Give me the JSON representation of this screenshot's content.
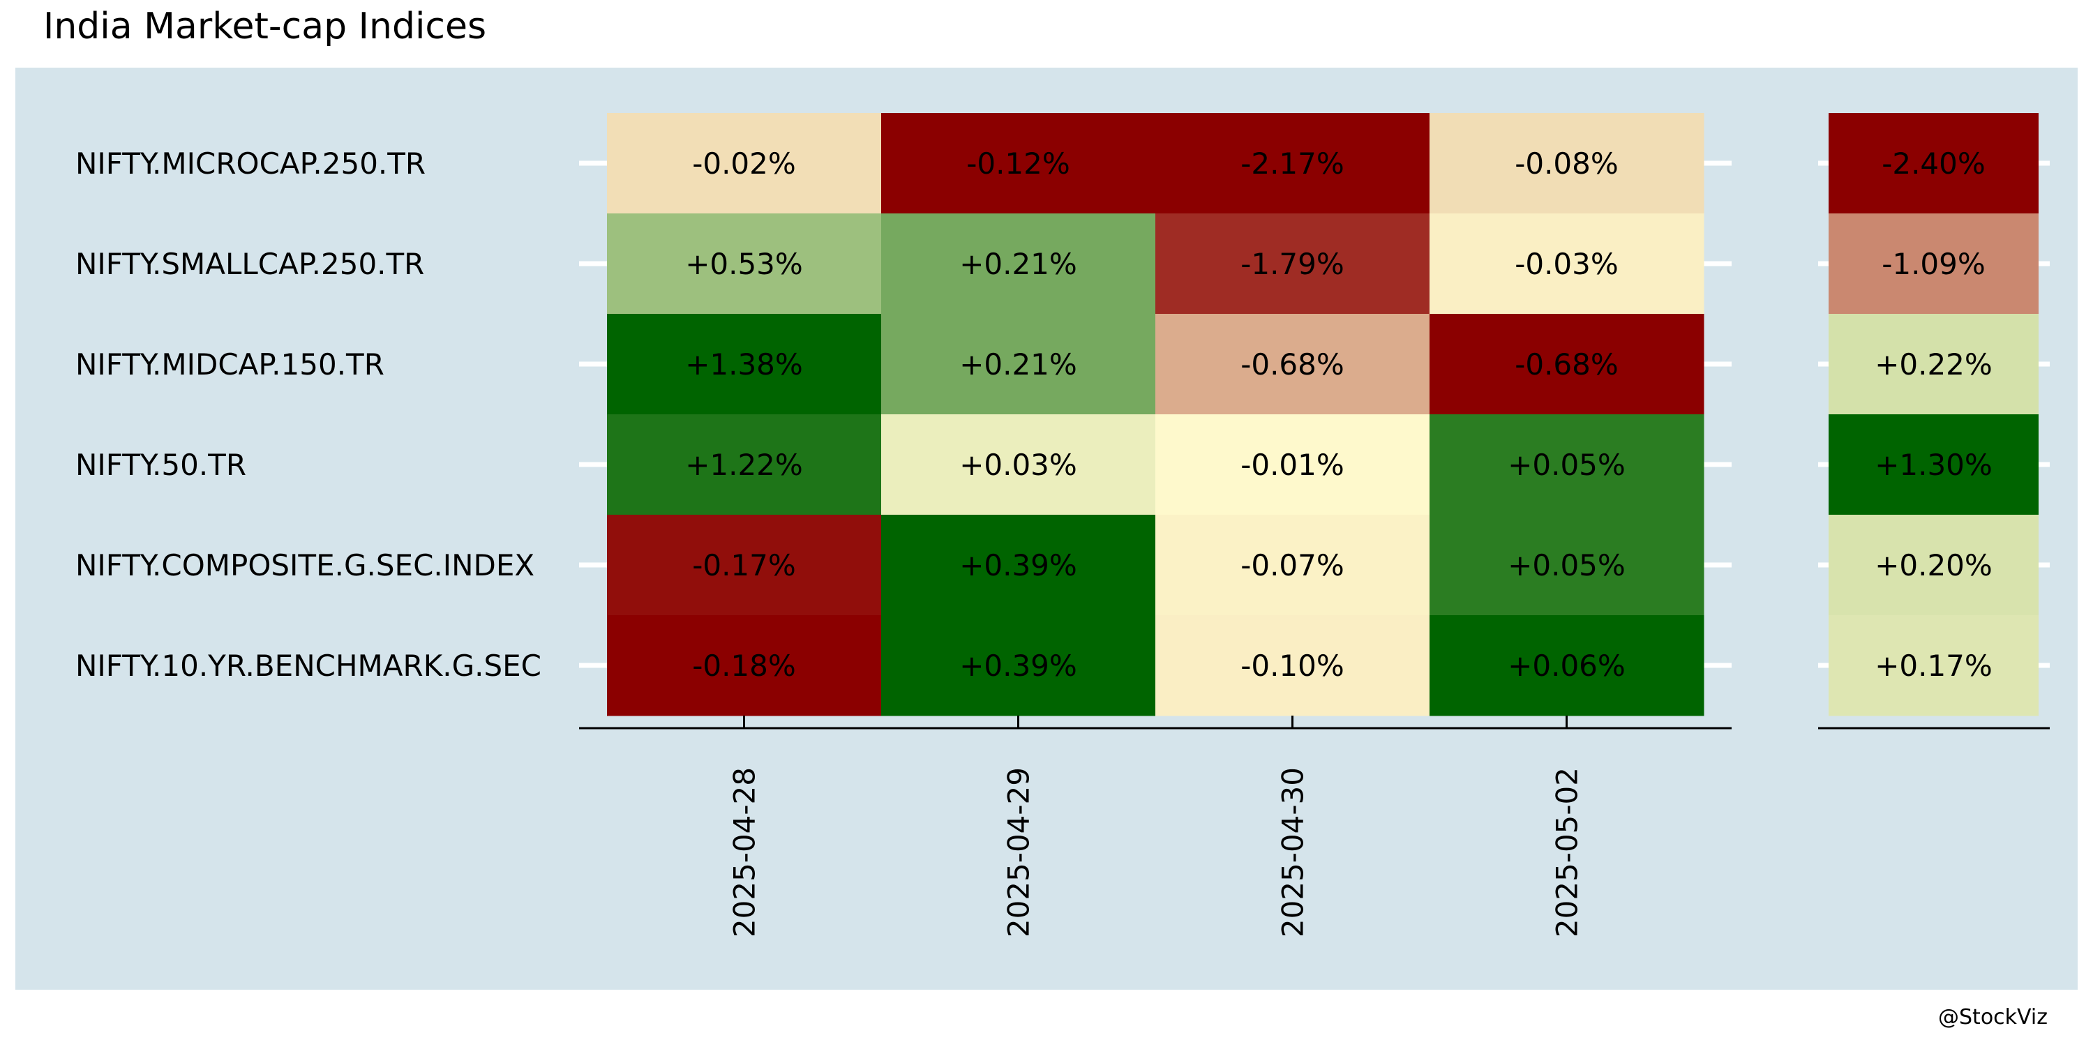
{
  "chart_data": {
    "type": "heatmap",
    "title": "India Market-cap Indices",
    "credit": "@StockViz",
    "rows": [
      "NIFTY.MICROCAP.250.TR",
      "NIFTY.SMALLCAP.250.TR",
      "NIFTY.MIDCAP.150.TR",
      "NIFTY.50.TR",
      "NIFTY.COMPOSITE.G.SEC.INDEX",
      "NIFTY.10.YR.BENCHMARK.G.SEC"
    ],
    "columns": [
      "2025-04-28",
      "2025-04-29",
      "2025-04-30",
      "2025-05-02"
    ],
    "values": [
      [
        -0.02,
        -0.12,
        -2.17,
        -0.08
      ],
      [
        0.53,
        0.21,
        -1.79,
        -0.03
      ],
      [
        1.38,
        0.21,
        -0.68,
        -0.68
      ],
      [
        1.22,
        0.03,
        -0.01,
        0.05
      ],
      [
        -0.17,
        0.39,
        -0.07,
        0.05
      ],
      [
        -0.18,
        0.39,
        -0.1,
        0.06
      ]
    ],
    "labels": [
      [
        "-0.02%",
        "-0.12%",
        "-2.17%",
        "-0.08%"
      ],
      [
        "+0.53%",
        "+0.21%",
        "-1.79%",
        "-0.03%"
      ],
      [
        "+1.38%",
        "+0.21%",
        "-0.68%",
        "-0.68%"
      ],
      [
        "+1.22%",
        "+0.03%",
        "-0.01%",
        "+0.05%"
      ],
      [
        "-0.17%",
        "+0.39%",
        "-0.07%",
        "+0.05%"
      ],
      [
        "-0.18%",
        "+0.39%",
        "-0.10%",
        "+0.06%"
      ]
    ],
    "totals": {
      "values": [
        -2.4,
        -1.09,
        0.22,
        1.3,
        0.2,
        0.17
      ],
      "labels": [
        "-2.40%",
        "-1.09%",
        "+0.22%",
        "+1.30%",
        "+0.20%",
        "+0.17%"
      ]
    },
    "colors": {
      "background_panel": "#d5e4eb",
      "page_background": "#ffffff",
      "neutral": "#fffacd",
      "negative_max": "#8b0000",
      "positive_max": "#006400",
      "gridline": "#ffffff",
      "axis": "#000000",
      "text": "#000000"
    }
  }
}
